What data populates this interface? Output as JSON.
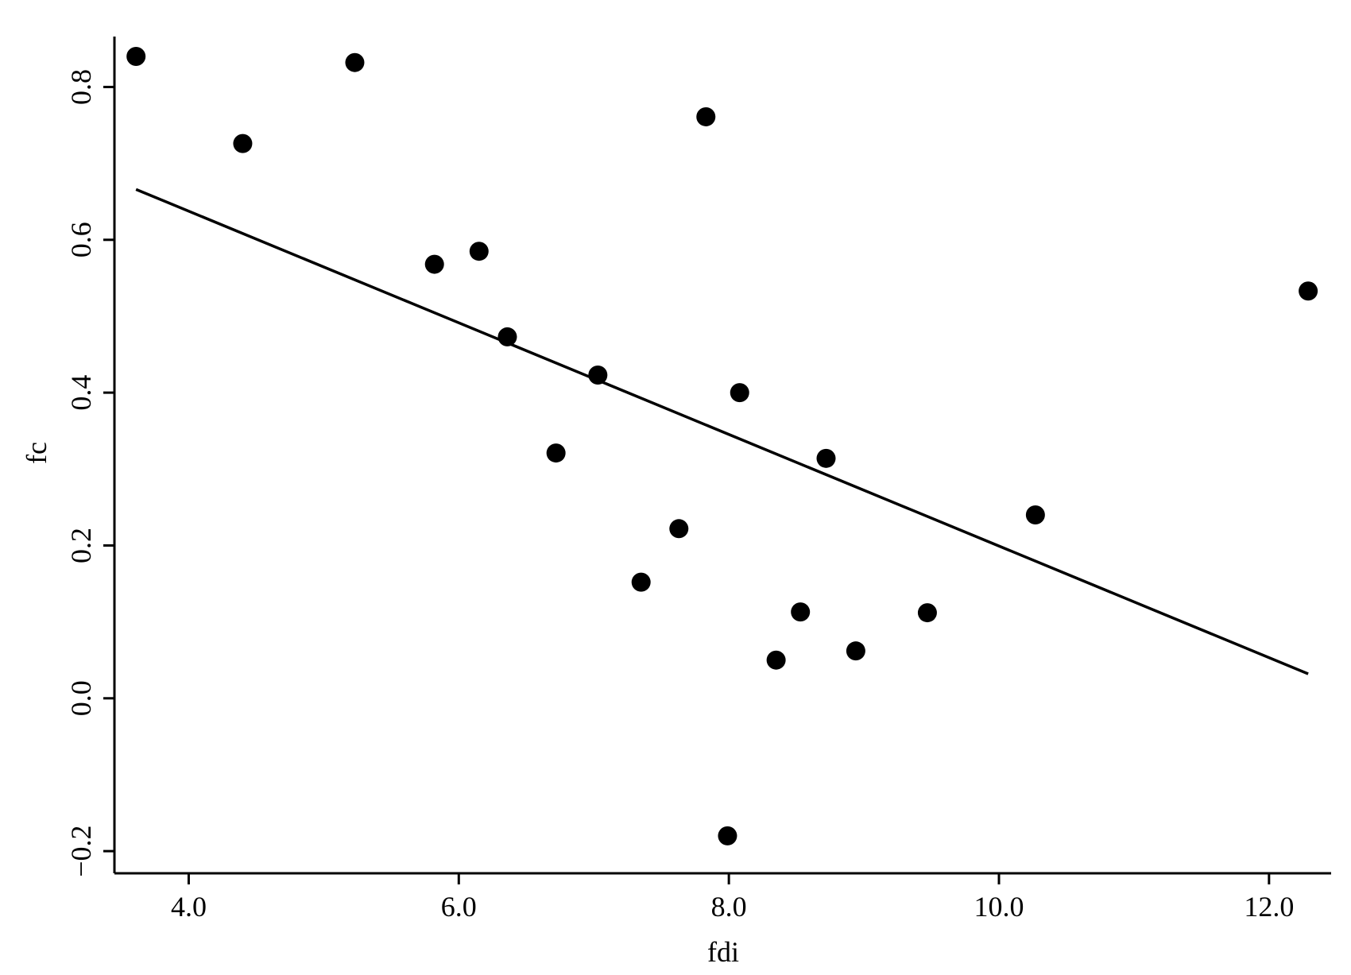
{
  "chart_data": {
    "type": "scatter",
    "xlabel": "fdi",
    "ylabel": "fc",
    "x": [
      3.61,
      4.4,
      5.23,
      5.82,
      6.15,
      6.36,
      6.72,
      7.03,
      7.35,
      7.63,
      7.83,
      7.99,
      8.08,
      8.35,
      8.53,
      8.72,
      8.94,
      9.47,
      10.27,
      12.29
    ],
    "values": [
      0.84,
      0.726,
      0.832,
      0.568,
      0.585,
      0.473,
      0.321,
      0.423,
      0.152,
      0.222,
      0.761,
      -0.18,
      0.4,
      0.05,
      0.113,
      0.314,
      0.062,
      0.112,
      0.24,
      0.533
    ],
    "color": "#000000",
    "fit_line": {
      "x": [
        3.61,
        12.29
      ],
      "values": [
        0.666,
        0.032
      ]
    },
    "xlim": [
      3.45,
      12.46
    ],
    "ylim": [
      -0.229,
      0.866
    ],
    "xticks": [
      {
        "value": 4,
        "label": "4.0"
      },
      {
        "value": 6,
        "label": "6.0"
      },
      {
        "value": 8,
        "label": "8.0"
      },
      {
        "value": 10,
        "label": "10.0"
      },
      {
        "value": 12,
        "label": "12.0"
      }
    ],
    "yticks": [
      {
        "value": -0.2,
        "label": "−0.2"
      },
      {
        "value": 0,
        "label": "0.0"
      },
      {
        "value": 0.2,
        "label": "0.2"
      },
      {
        "value": 0.4,
        "label": "0.4"
      },
      {
        "value": 0.6,
        "label": "0.6"
      },
      0.8
    ]
  }
}
